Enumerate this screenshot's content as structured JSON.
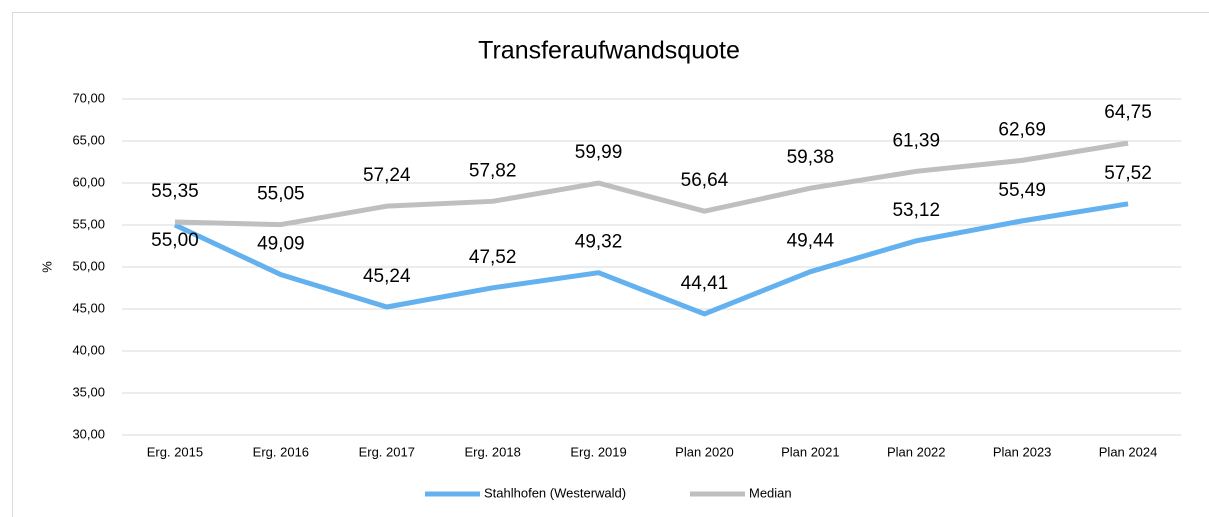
{
  "chart_data": {
    "type": "line",
    "title": "Transferaufwandsquote",
    "y_label": "%",
    "categories": [
      "Erg. 2015",
      "Erg. 2016",
      "Erg. 2017",
      "Erg. 2018",
      "Erg. 2019",
      "Plan 2020",
      "Plan 2021",
      "Plan 2022",
      "Plan 2023",
      "Plan 2024"
    ],
    "series": [
      {
        "name": "Stahlhofen (Westerwald)",
        "color": "#64b1ef",
        "values": [
          55.0,
          49.09,
          45.24,
          47.52,
          49.32,
          44.41,
          49.44,
          53.12,
          55.49,
          57.52
        ],
        "value_labels": [
          "55,00",
          "49,09",
          "45,24",
          "47,52",
          "49,32",
          "44,41",
          "49,44",
          "53,12",
          "55,49",
          "57,52"
        ]
      },
      {
        "name": "Median",
        "color": "#bfbfbf",
        "values": [
          55.35,
          55.05,
          57.24,
          57.82,
          59.99,
          56.64,
          59.38,
          61.39,
          62.69,
          64.75
        ],
        "value_labels": [
          "55,35",
          "55,05",
          "57,24",
          "57,82",
          "59,99",
          "56,64",
          "59,38",
          "61,39",
          "62,69",
          "64,75"
        ]
      }
    ],
    "ylim": [
      30,
      70
    ],
    "yticks": [
      {
        "value": 30,
        "label": "30,00"
      },
      {
        "value": 35,
        "label": "35,00"
      },
      {
        "value": 40,
        "label": "40,00"
      },
      {
        "value": 45,
        "label": "45,00"
      },
      {
        "value": 50,
        "label": "50,00"
      },
      {
        "value": 55,
        "label": "55,00"
      },
      {
        "value": 60,
        "label": "60,00"
      },
      {
        "value": 65,
        "label": "65,00"
      },
      {
        "value": 70,
        "label": "70,00"
      }
    ],
    "grid": true,
    "legend": "bottom"
  }
}
